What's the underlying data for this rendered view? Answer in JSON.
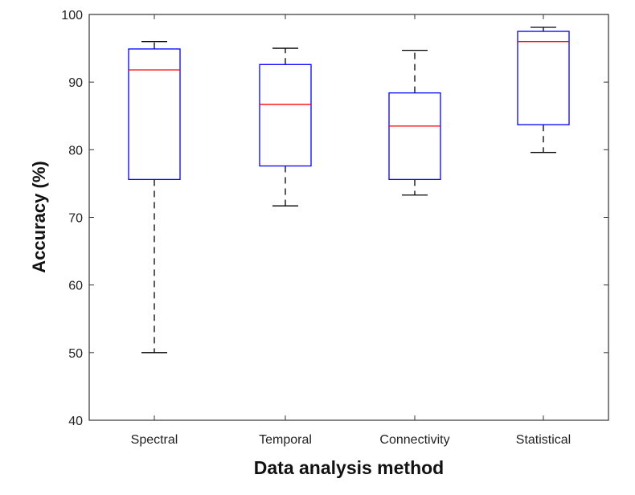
{
  "chart_data": {
    "type": "box",
    "title": "",
    "xlabel": "Data analysis method",
    "ylabel": "Accuracy (%)",
    "ylim": [
      40,
      100
    ],
    "yticks": [
      40,
      50,
      60,
      70,
      80,
      90,
      100
    ],
    "categories": [
      "Spectral",
      "Temporal",
      "Connectivity",
      "Statistical"
    ],
    "boxes": [
      {
        "min": 50.0,
        "q1": 75.6,
        "median": 91.8,
        "q3": 94.9,
        "max": 96.0
      },
      {
        "min": 71.7,
        "q1": 77.6,
        "median": 86.7,
        "q3": 92.6,
        "max": 95.0
      },
      {
        "min": 73.3,
        "q1": 75.6,
        "median": 83.5,
        "q3": 88.4,
        "max": 94.7
      },
      {
        "min": 79.6,
        "q1": 83.7,
        "median": 96.0,
        "q3": 97.5,
        "max": 98.1
      }
    ],
    "grid": false,
    "colors": {
      "box": "#0000ff",
      "median": "#ff0000",
      "whisker": "#000000"
    }
  }
}
